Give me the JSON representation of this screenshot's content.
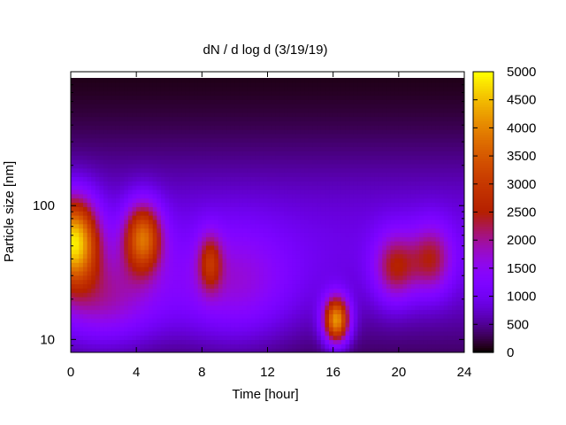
{
  "chart_data": {
    "type": "heatmap",
    "title": "dN / d log d (3/19/19)",
    "xlabel": "Time [hour]",
    "ylabel": "Particle size [nm]",
    "xlim": [
      0,
      24
    ],
    "ylim_nm": [
      8,
      900
    ],
    "y_scale": "log",
    "x_ticks": [
      0,
      4,
      8,
      12,
      16,
      20,
      24
    ],
    "x_tick_labels": [
      "0",
      "4",
      "8",
      "12",
      "16",
      "20",
      "24"
    ],
    "y_ticks": [
      10,
      100
    ],
    "y_tick_labels": [
      "10",
      "100"
    ],
    "colorbar": {
      "range": [
        0,
        5000
      ],
      "ticks": [
        0,
        500,
        1000,
        1500,
        2000,
        2500,
        3000,
        3500,
        4000,
        4500,
        5000
      ],
      "tick_labels": [
        "0",
        "500",
        "1000",
        "1500",
        "2000",
        "2500",
        "3000",
        "3500",
        "4000",
        "4500",
        "5000"
      ],
      "colormap": "gnuplot-pm3d-black-purple-red-yellow"
    },
    "baseline": 900,
    "features": [
      {
        "time_h": 0.2,
        "size_nm": 55,
        "peak": 3800,
        "sigma_t_h": 1.0,
        "sigma_log_d": 0.22
      },
      {
        "time_h": 4.4,
        "size_nm": 58,
        "peak": 2800,
        "sigma_t_h": 0.8,
        "sigma_log_d": 0.18
      },
      {
        "time_h": 8.5,
        "size_nm": 38,
        "peak": 1500,
        "sigma_t_h": 0.5,
        "sigma_log_d": 0.15
      },
      {
        "time_h": 16.2,
        "size_nm": 14,
        "peak": 3600,
        "sigma_t_h": 0.55,
        "sigma_log_d": 0.12
      },
      {
        "time_h": 19.8,
        "size_nm": 35,
        "peak": 1600,
        "sigma_t_h": 0.9,
        "sigma_log_d": 0.18
      },
      {
        "time_h": 22.0,
        "size_nm": 40,
        "peak": 1500,
        "sigma_t_h": 0.9,
        "sigma_log_d": 0.18
      },
      {
        "time_h": 2.0,
        "size_nm": 20,
        "peak": 1200,
        "sigma_t_h": 2.5,
        "sigma_log_d": 0.25
      },
      {
        "time_h": 10.0,
        "size_nm": 25,
        "peak": 900,
        "sigma_t_h": 2.5,
        "sigma_log_d": 0.3
      }
    ]
  }
}
